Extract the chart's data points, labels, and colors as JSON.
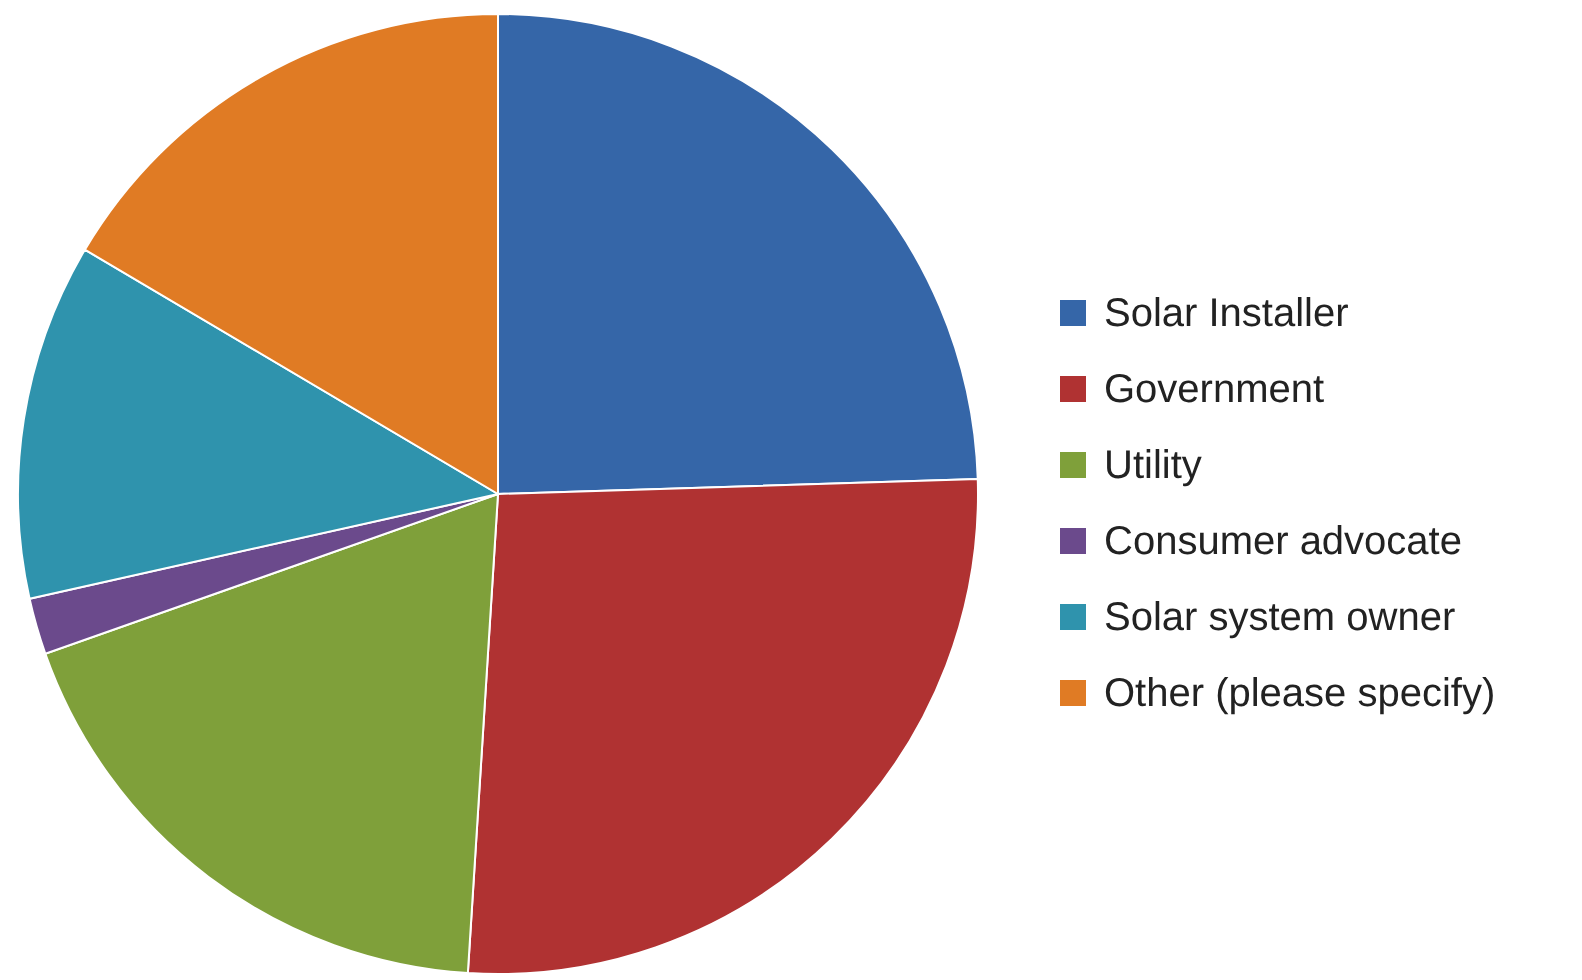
{
  "chart_data": {
    "type": "pie",
    "categories": [
      "Solar Installer",
      "Government",
      "Utility",
      "Consumer advocate",
      "Solar system owner",
      "Other (please specify)"
    ],
    "values": [
      24.5,
      26.5,
      18.6,
      1.9,
      12,
      16.5
    ],
    "colors": [
      "#3566a8",
      "#b03232",
      "#7fa03a",
      "#6b4a8c",
      "#2f93ad",
      "#e07b24"
    ],
    "legend": "right"
  }
}
